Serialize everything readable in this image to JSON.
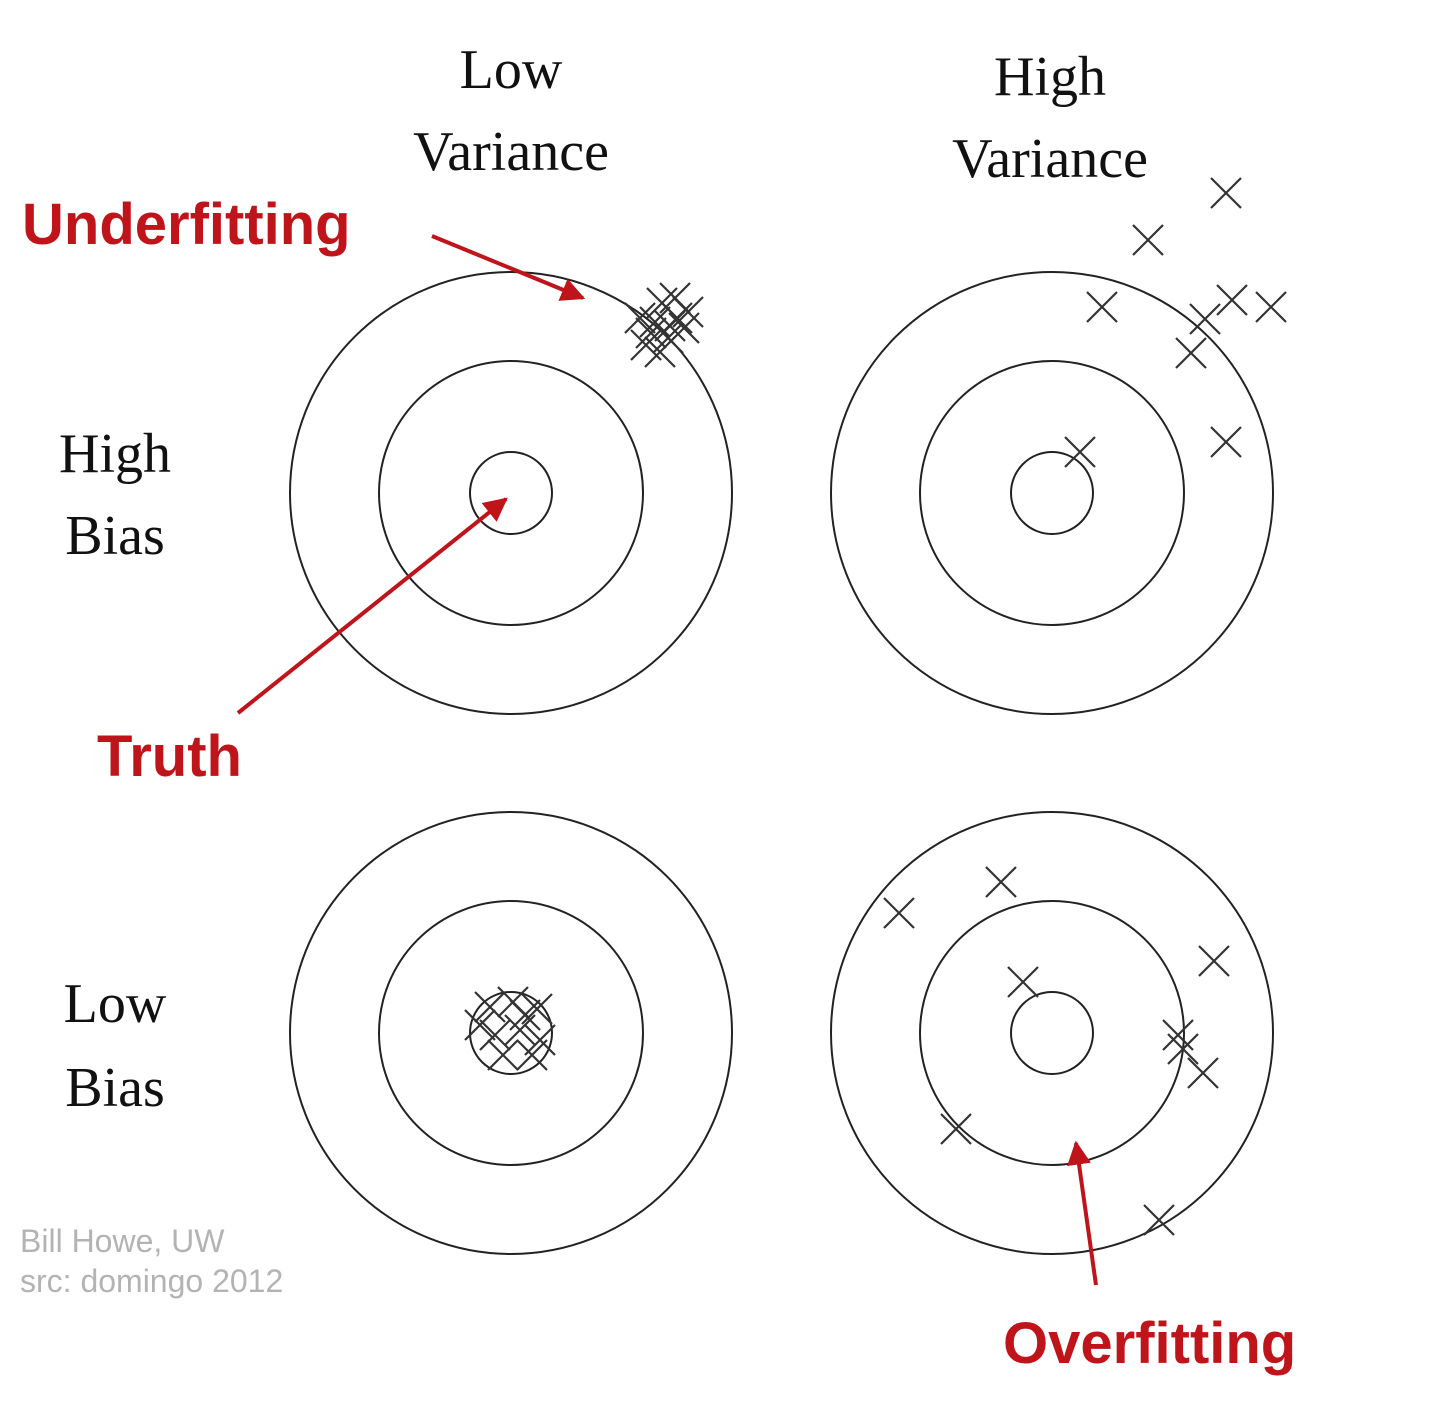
{
  "columns": {
    "low_variance": [
      "Low",
      "Variance"
    ],
    "high_variance": [
      "High",
      "Variance"
    ]
  },
  "rows": {
    "high_bias": [
      "High",
      "Bias"
    ],
    "low_bias": [
      "Low",
      "Bias"
    ]
  },
  "annotations": {
    "underfitting": "Underfitting",
    "truth": "Truth",
    "overfitting": "Overfitting"
  },
  "credit": {
    "author": "Bill Howe, UW",
    "source": "src: domingo 2012"
  },
  "colors": {
    "annotation": "#c0141b",
    "credit": "#b3b3b3",
    "ink": "#222222"
  },
  "targets": [
    {
      "id": "high-bias-low-variance",
      "hits": 12
    },
    {
      "id": "high-bias-high-variance",
      "hits": 9
    },
    {
      "id": "low-bias-low-variance",
      "hits": 10
    },
    {
      "id": "low-bias-high-variance",
      "hits": 9
    }
  ]
}
